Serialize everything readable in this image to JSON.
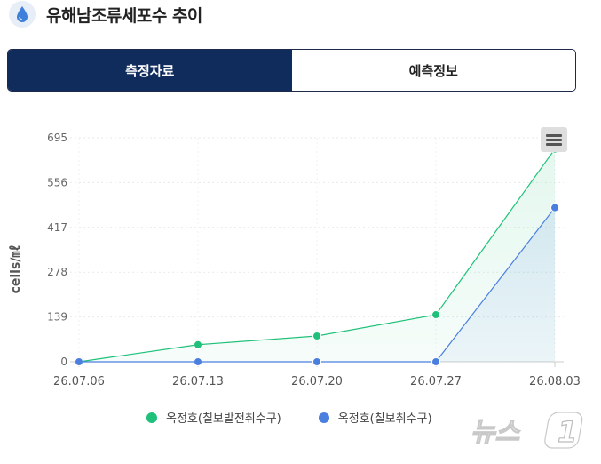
{
  "header": {
    "title": "유해남조류세포수 추이",
    "icon": "water-drop-icon"
  },
  "tabs": [
    {
      "label": "측정자료",
      "active": true
    },
    {
      "label": "예측정보",
      "active": false
    }
  ],
  "colors": {
    "tab_active_bg": "#102c5c",
    "series_1": "#1fc17a",
    "series_2": "#4a7fe0"
  },
  "menu": {
    "icon": "hamburger-menu-icon"
  },
  "chart_data": {
    "type": "area",
    "ylabel": "cells/㎖",
    "xlabel": "",
    "x": [
      "26.07.06",
      "26.07.13",
      "26.07.20",
      "26.07.27",
      "26.08.03"
    ],
    "ylim": [
      0,
      695
    ],
    "yticks": [
      0,
      139,
      278,
      417,
      556,
      695
    ],
    "grid": true,
    "legend_position": "bottom",
    "series": [
      {
        "name": "옥정호(칠보발전취수구)",
        "values": [
          0,
          53,
          80,
          146,
          660
        ],
        "color": "#1fc17a"
      },
      {
        "name": "옥정호(칠보취수구)",
        "values": [
          0,
          0,
          0,
          0,
          478
        ],
        "color": "#4a7fe0"
      }
    ]
  },
  "watermark": {
    "text": "뉴스1"
  }
}
